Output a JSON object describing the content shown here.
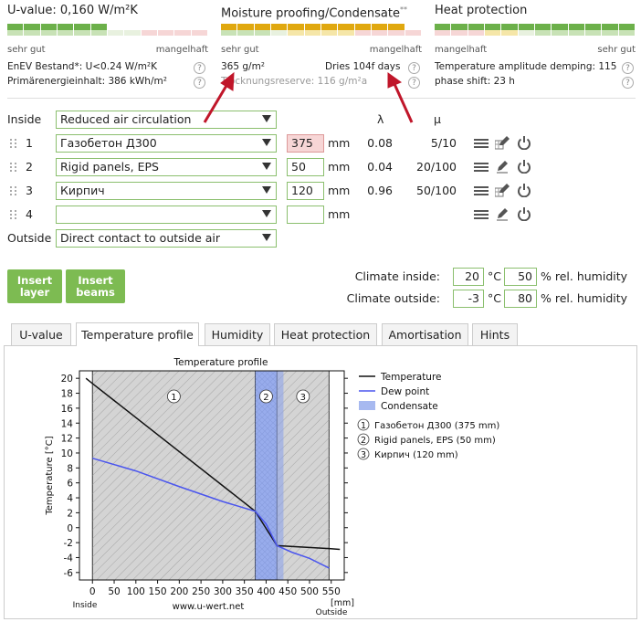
{
  "uvalue": {
    "title": "U-value: 0,160 W/m²K",
    "scale_left": "sehr gut",
    "scale_right": "mangelhaft",
    "line1": "EnEV Bestand*: U<0.24 W/m²K",
    "line2": "Primärenergieinhalt: 386 kWh/m²"
  },
  "moisture": {
    "title": "Moisture proofing/Condensate",
    "title_sup": "**",
    "scale_left": "sehr gut",
    "scale_right": "mangelhaft",
    "condensate": "365 g/m²",
    "dries": "Dries 104f days",
    "reserve": "Trocknungsreserve: 116 g/m²a"
  },
  "heat": {
    "title": "Heat protection",
    "scale_left": "mangelhaft",
    "scale_right": "sehr gut",
    "line1": "Temperature amplitude demping: 115",
    "line2": "phase shift: 23 h"
  },
  "colors": {
    "accent_green": "#7dbb52",
    "input_border": "#8bbf6e",
    "warn_bg": "#f7d6d6",
    "annotation_arrow": "#c0162a",
    "condensate_blue": "#a7b9f0"
  },
  "layers": {
    "inside_label": "Inside",
    "inside_value": "Reduced air circulation",
    "outside_label": "Outside",
    "outside_value": "Direct contact to outside air",
    "lambda_header": "λ",
    "mu_header": "μ",
    "unit": "mm",
    "rows": [
      {
        "num": "1",
        "material": "Газобетон Д300",
        "thickness": "375",
        "lambda": "0.08",
        "mu": "5/10"
      },
      {
        "num": "2",
        "material": "Rigid panels, EPS",
        "thickness": "50",
        "lambda": "0.04",
        "mu": "20/100"
      },
      {
        "num": "3",
        "material": "Кирпич",
        "thickness": "120",
        "lambda": "0.96",
        "mu": "50/100"
      },
      {
        "num": "4",
        "material": "",
        "thickness": "",
        "lambda": "",
        "mu": ""
      }
    ]
  },
  "buttons": {
    "insert_layer": "Insert\nlayer",
    "insert_beams": "Insert\nbeams"
  },
  "climate": {
    "inside_label": "Climate inside:",
    "inside_temp": "20",
    "inside_hum": "50",
    "outside_label": "Climate outside:",
    "outside_temp": "-3",
    "outside_hum": "80",
    "temp_unit": "°C",
    "hum_unit": "% rel. humidity"
  },
  "tabs": [
    "U-value",
    "Temperature profile",
    "Humidity",
    "Heat protection",
    "Amortisation",
    "Hints"
  ],
  "active_tab": 1,
  "chart_data": {
    "type": "line",
    "title": "Temperature profile",
    "ylabel": "Temperature [°C]",
    "xlabel": "[mm]",
    "x_left_label": "Inside",
    "x_right_label": "Outside",
    "watermark": "www.u-wert.net",
    "xlim": [
      -30,
      580
    ],
    "ylim": [
      -7,
      21
    ],
    "x_ticks": [
      0,
      50,
      100,
      150,
      200,
      250,
      300,
      350,
      400,
      450,
      500,
      550
    ],
    "y_ticks": [
      20,
      18,
      16,
      14,
      12,
      10,
      8,
      6,
      4,
      2,
      0,
      -2,
      -4,
      -6
    ],
    "layers": [
      {
        "id": "1",
        "from": 0,
        "to": 375,
        "fill": "#d4d4d4"
      },
      {
        "id": "2",
        "from": 375,
        "to": 425,
        "fill": "#a7b9f0"
      },
      {
        "id": "3",
        "from": 425,
        "to": 545,
        "fill": "#d4d4d4"
      }
    ],
    "condensate_zone": [
      375,
      440
    ],
    "series": [
      {
        "name": "Temperature",
        "color": "#111111",
        "x": [
          -15,
          0,
          375,
          425,
          545,
          570
        ],
        "y": [
          20,
          19.3,
          2.2,
          -2.4,
          -2.8,
          -2.9
        ]
      },
      {
        "name": "Dew point",
        "color": "#4a55ee",
        "x": [
          0,
          100,
          200,
          300,
          375,
          400,
          425,
          460,
          500,
          545
        ],
        "y": [
          9.3,
          7.6,
          5.5,
          3.5,
          2.2,
          0.5,
          -2.4,
          -3.3,
          -4.1,
          -5.4
        ]
      }
    ],
    "legend": [
      "Temperature",
      "Dew point",
      "Condensate"
    ],
    "layer_legend": [
      "Газобетон Д300 (375 mm)",
      "Rigid panels, EPS (50 mm)",
      "Кирпич (120 mm)"
    ]
  }
}
